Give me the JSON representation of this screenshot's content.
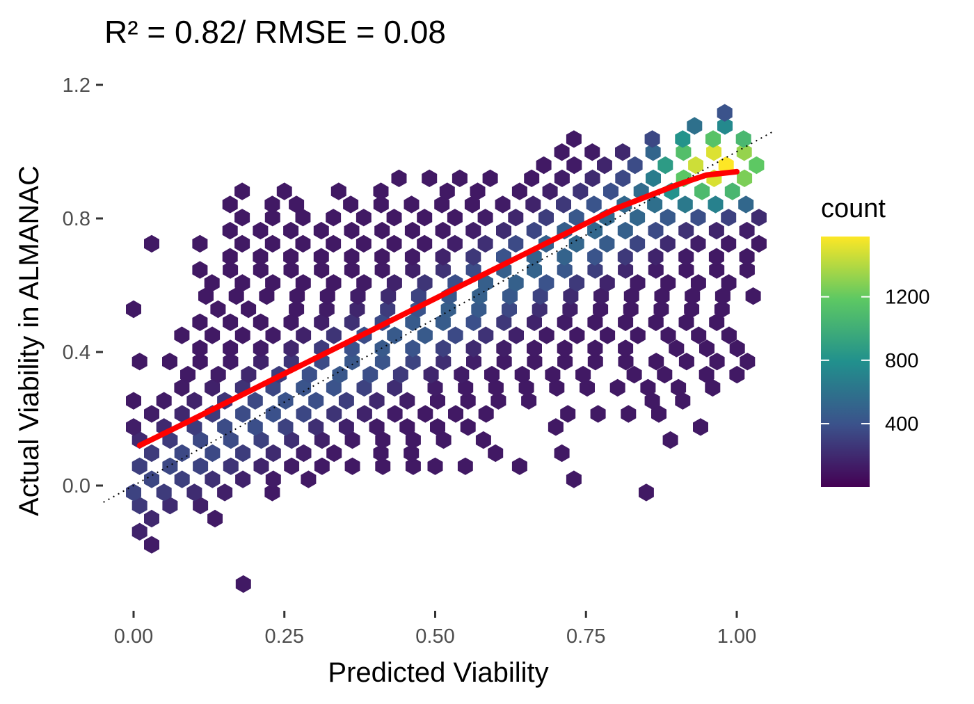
{
  "chart_data": {
    "type": "heatmap",
    "subtype": "hexbin",
    "title": "R² = 0.82/ RMSE = 0.08",
    "xlabel": "Predicted Viability",
    "ylabel": "Actual Viability in ALMANAC",
    "xlim": [
      -0.05,
      1.06
    ],
    "ylim": [
      -0.36,
      1.26
    ],
    "x_ticks": [
      0.0,
      0.25,
      0.5,
      0.75,
      1.0
    ],
    "x_tick_labels": [
      "0.00",
      "0.25",
      "0.50",
      "0.75",
      "1.00"
    ],
    "y_ticks": [
      0.0,
      0.4,
      0.8,
      1.2
    ],
    "y_tick_labels": [
      "0.0",
      "0.4",
      "0.8",
      "1.2"
    ],
    "grid": false,
    "reference_line": {
      "type": "identity",
      "style": "dotted",
      "color": "#000000"
    },
    "smooth_line": {
      "color": "#ff0000",
      "x": [
        0.01,
        0.1,
        0.2,
        0.3,
        0.4,
        0.5,
        0.6,
        0.7,
        0.8,
        0.9,
        0.95,
        1.0
      ],
      "y": [
        0.12,
        0.2,
        0.29,
        0.38,
        0.47,
        0.56,
        0.65,
        0.74,
        0.83,
        0.9,
        0.93,
        0.94
      ]
    },
    "legend": {
      "title": "count",
      "placement": "right",
      "ticks": [
        400,
        800,
        1200
      ],
      "tick_labels": [
        "400",
        "800",
        "1200"
      ],
      "range": [
        1,
        1580
      ],
      "colormap": [
        "#440154",
        "#3b528b",
        "#21908d",
        "#5dc863",
        "#fde725"
      ]
    },
    "hexbin": {
      "x_step": 0.0504,
      "y_step": 0.0392,
      "rows_y_start": -0.295,
      "row_count": 37,
      "rows": [
        {
          "row": 0,
          "segments": [
            [
              0.182,
              0.182
            ]
          ]
        },
        {
          "row": 3,
          "segments": [
            [
              0.03,
              0.03
            ]
          ]
        },
        {
          "row": 4,
          "segments": [
            [
              0.01,
              0.01
            ]
          ]
        },
        {
          "row": 5,
          "segments": [
            [
              0.03,
              0.03
            ],
            [
              0.135,
              0.135
            ]
          ]
        },
        {
          "row": 6,
          "segments": [
            [
              0.01,
              0.115
            ]
          ]
        },
        {
          "row": 7,
          "segments": [
            [
              0.0,
              0.17
            ],
            [
              0.23,
              0.23
            ],
            [
              0.85,
              0.85
            ]
          ]
        },
        {
          "row": 8,
          "segments": [
            [
              0.03,
              0.25
            ],
            [
              0.29,
              0.33
            ],
            [
              0.73,
              0.73
            ]
          ]
        },
        {
          "row": 9,
          "segments": [
            [
              0.01,
              0.47
            ],
            [
              0.5,
              0.5
            ],
            [
              0.55,
              0.55
            ],
            [
              0.64,
              0.64
            ]
          ]
        },
        {
          "row": 10,
          "segments": [
            [
              0.03,
              0.38
            ],
            [
              0.41,
              0.49
            ],
            [
              0.6,
              0.6
            ],
            [
              0.71,
              0.71
            ]
          ]
        },
        {
          "row": 11,
          "segments": [
            [
              0.01,
              0.52
            ],
            [
              0.58,
              0.62
            ],
            [
              0.89,
              0.89
            ]
          ]
        },
        {
          "row": 12,
          "segments": [
            [
              0.0,
              0.6
            ],
            [
              0.7,
              0.7
            ],
            [
              0.94,
              0.94
            ]
          ]
        },
        {
          "row": 13,
          "segments": [
            [
              0.03,
              0.62
            ],
            [
              0.72,
              0.72
            ],
            [
              0.77,
              0.91
            ]
          ]
        },
        {
          "row": 14,
          "segments": [
            [
              0.0,
              0.68
            ],
            [
              0.86,
              0.93
            ]
          ]
        },
        {
          "row": 15,
          "segments": [
            [
              0.08,
              0.46
            ],
            [
              0.5,
              0.92
            ],
            [
              0.96,
              1.01
            ]
          ]
        },
        {
          "row": 16,
          "segments": [
            [
              0.09,
              0.77
            ],
            [
              0.83,
              0.89
            ],
            [
              0.95,
              1.01
            ]
          ]
        },
        {
          "row": 17,
          "segments": [
            [
              0.01,
              0.01
            ],
            [
              0.06,
              1.02
            ]
          ]
        },
        {
          "row": 18,
          "segments": [
            [
              0.11,
              0.85
            ],
            [
              0.9,
              1.01
            ]
          ]
        },
        {
          "row": 19,
          "segments": [
            [
              0.08,
              1.02
            ]
          ]
        },
        {
          "row": 20,
          "segments": [
            [
              0.11,
              1.0
            ]
          ]
        },
        {
          "row": 21,
          "segments": [
            [
              0.0,
              0.0
            ],
            [
              0.14,
              0.23
            ],
            [
              0.27,
              1.02
            ]
          ]
        },
        {
          "row": 22,
          "segments": [
            [
              0.12,
              1.04
            ]
          ]
        },
        {
          "row": 23,
          "segments": [
            [
              0.13,
              1.02
            ]
          ]
        },
        {
          "row": 24,
          "segments": [
            [
              0.11,
              1.04
            ]
          ]
        },
        {
          "row": 25,
          "segments": [
            [
              0.16,
              1.02
            ]
          ]
        },
        {
          "row": 26,
          "segments": [
            [
              0.03,
              0.03
            ],
            [
              0.11,
              0.11
            ],
            [
              0.18,
              1.04
            ]
          ]
        },
        {
          "row": 27,
          "segments": [
            [
              0.16,
              1.02
            ]
          ]
        },
        {
          "row": 28,
          "segments": [
            [
              0.18,
              1.04
            ]
          ]
        },
        {
          "row": 29,
          "segments": [
            [
              0.16,
              0.16
            ],
            [
              0.23,
              0.23
            ],
            [
              0.27,
              0.27
            ],
            [
              0.36,
              1.02
            ]
          ]
        },
        {
          "row": 30,
          "segments": [
            [
              0.18,
              0.18
            ],
            [
              0.25,
              0.25
            ],
            [
              0.34,
              0.34
            ],
            [
              0.41,
              0.41
            ],
            [
              0.52,
              0.62
            ],
            [
              0.64,
              1.04
            ]
          ]
        },
        {
          "row": 31,
          "segments": [
            [
              0.44,
              0.6
            ],
            [
              0.66,
              1.02
            ]
          ]
        },
        {
          "row": 32,
          "segments": [
            [
              0.68,
              1.04
            ]
          ]
        },
        {
          "row": 33,
          "segments": [
            [
              0.71,
              1.02
            ]
          ]
        },
        {
          "row": 34,
          "segments": [
            [
              0.73,
              0.77
            ],
            [
              0.86,
              1.04
            ]
          ]
        },
        {
          "row": 35,
          "segments": [
            [
              0.93,
              1.01
            ]
          ]
        },
        {
          "row": 36,
          "segments": [
            [
              0.98,
              0.98
            ]
          ]
        }
      ]
    }
  }
}
